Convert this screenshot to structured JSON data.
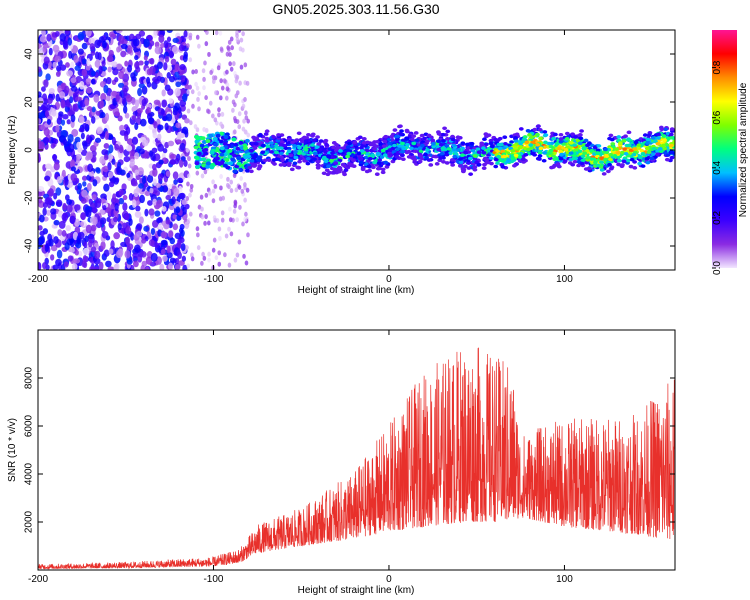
{
  "title": "GN05.2025.303.11.56.G30",
  "chart_data": [
    {
      "type": "heatmap",
      "xlabel": "Height of straight line (km)",
      "ylabel": "Frequency (Hz)",
      "xlim": [
        -200,
        163
      ],
      "ylim": [
        -50,
        50
      ],
      "xticks": [
        -200,
        -100,
        0,
        100
      ],
      "yticks": [
        -40,
        -20,
        0,
        20,
        40
      ],
      "colorbar": {
        "label": "Normalized spectral amplitude",
        "range": [
          0,
          0.95
        ],
        "ticks": [
          "0.0",
          "0.2",
          "0.4",
          "0.6",
          "0.8"
        ],
        "tick_values": [
          0,
          0.2,
          0.4,
          0.6,
          0.8
        ],
        "colors": [
          "#f2e6ff",
          "#8a2be2",
          "#3b00ff",
          "#0000ff",
          "#00bfff",
          "#00ff7f",
          "#7fff00",
          "#ffff00",
          "#ff8c00",
          "#ff0000",
          "#ff1493"
        ]
      },
      "segments": [
        {
          "x_start": -200,
          "x_end": -115,
          "kind": "noise",
          "amplitude": 0.15
        },
        {
          "x_start": -115,
          "x_end": -80,
          "kind": "ramp",
          "amplitude": 0.35
        },
        {
          "x_start": -80,
          "x_end": 60,
          "kind": "band",
          "amplitude": 0.4
        },
        {
          "x_start": 60,
          "x_end": 163,
          "kind": "band",
          "amplitude": 0.7
        }
      ]
    },
    {
      "type": "line",
      "xlabel": "Height of straight line (km)",
      "ylabel": "SNR (10 * v/v)",
      "xlim": [
        -200,
        163
      ],
      "ylim": [
        0,
        10000
      ],
      "xticks": [
        -200,
        -100,
        0,
        100
      ],
      "yticks": [
        2000,
        4000,
        6000,
        8000
      ],
      "color": "#e8302b",
      "envelope": [
        {
          "x": -200,
          "base": 50,
          "spread": 200
        },
        {
          "x": -150,
          "base": 80,
          "spread": 250
        },
        {
          "x": -100,
          "base": 150,
          "spread": 400
        },
        {
          "x": -85,
          "base": 300,
          "spread": 600
        },
        {
          "x": -75,
          "base": 700,
          "spread": 1200
        },
        {
          "x": -50,
          "base": 1000,
          "spread": 1600
        },
        {
          "x": -20,
          "base": 1300,
          "spread": 2800
        },
        {
          "x": 0,
          "base": 1600,
          "spread": 4500
        },
        {
          "x": 20,
          "base": 1800,
          "spread": 6500
        },
        {
          "x": 45,
          "base": 2000,
          "spread": 7600
        },
        {
          "x": 70,
          "base": 2000,
          "spread": 6600
        },
        {
          "x": 75,
          "base": 2200,
          "spread": 3500
        },
        {
          "x": 100,
          "base": 1800,
          "spread": 4500
        },
        {
          "x": 140,
          "base": 1500,
          "spread": 5000
        },
        {
          "x": 163,
          "base": 1200,
          "spread": 7000
        }
      ]
    }
  ]
}
